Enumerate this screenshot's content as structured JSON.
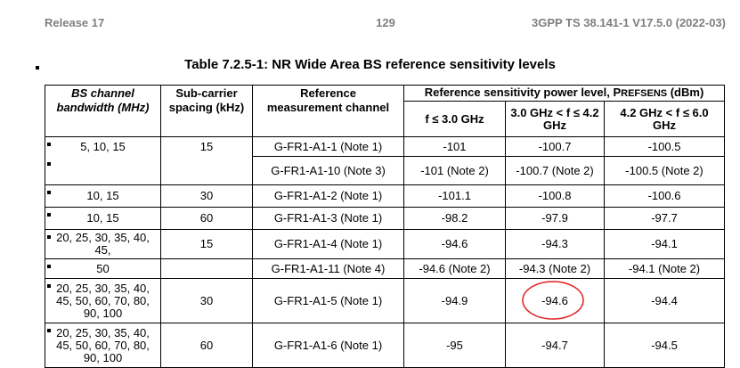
{
  "header": {
    "left": "Release 17",
    "center": "129",
    "right": "3GPP TS 38.141-1 V17.5.0 (2022-03)"
  },
  "table": {
    "title": "Table 7.2.5-1: NR Wide Area BS reference sensitivity levels",
    "head": {
      "bandwidth": [
        "BS channel",
        "bandwidth (MHz)"
      ],
      "spacing": [
        "Sub-carrier",
        "spacing (kHz)"
      ],
      "channel": [
        "Reference",
        "measurement channel"
      ],
      "power": {
        "prefix": "Reference sensitivity power level, ",
        "symbol": "P",
        "subscript": "REFSENS",
        "unit": " (dBm)"
      },
      "bands": [
        "f ≤ 3.0 GHz",
        "3.0 GHz < f ≤ 4.2 GHz",
        "4.2 GHz < f ≤ 6.0 GHz"
      ]
    },
    "rows": [
      [
        "5, 10, 15",
        "15",
        "G-FR1-A1-1 (Note 1)",
        "-101",
        "-100.7",
        "-100.5"
      ],
      [
        null,
        null,
        "G-FR1-A1-10 (Note 3)",
        "-101 (Note 2)",
        "-100.7 (Note 2)",
        "-100.5 (Note 2)"
      ],
      [
        "10, 15",
        "30",
        "G-FR1-A1-2 (Note 1)",
        "-101.1",
        "-100.8",
        "-100.6"
      ],
      [
        "10, 15",
        "60",
        "G-FR1-A1-3 (Note 1)",
        "-98.2",
        "-97.9",
        "-97.7"
      ],
      [
        "20, 25, 30, 35, 40, 45,",
        "15",
        "G-FR1-A1-4 (Note 1)",
        "-94.6",
        "-94.3",
        "-94.1"
      ],
      [
        "50",
        null,
        "G-FR1-A1-11 (Note 4)",
        "-94.6 (Note 2)",
        "-94.3 (Note 2)",
        "-94.1 (Note 2)"
      ],
      [
        "20, 25, 30, 35, 40, 45, 50, 60, 70, 80, 90, 100",
        "30",
        "G-FR1-A1-5 (Note 1)",
        "-94.9",
        "-94.6",
        "-94.4"
      ],
      [
        "20, 25, 30, 35, 40, 45, 50, 60, 70, 80, 90, 100",
        "60",
        "G-FR1-A1-6 (Note 1)",
        "-95",
        "-94.7",
        "-94.5"
      ]
    ]
  }
}
